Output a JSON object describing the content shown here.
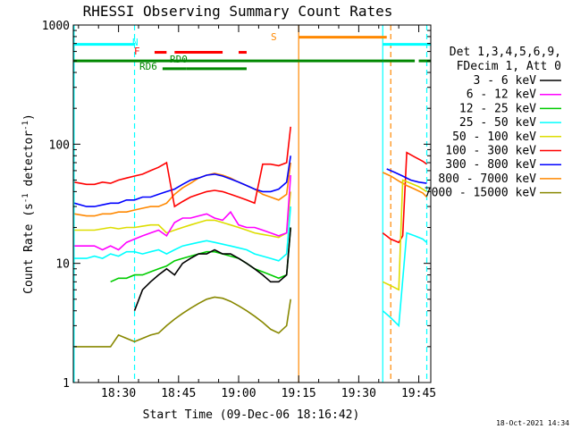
{
  "chart_data": {
    "type": "line",
    "title": "RHESSI Observing Summary Count Rates",
    "xlabel": "Start Time (09-Dec-06 18:16:42)",
    "ylabel_parts": [
      "Count Rate (s",
      "-1",
      " detector",
      "-1",
      ")"
    ],
    "yscale": "log",
    "ylim": [
      1,
      1000
    ],
    "xlim_minutes": [
      18.7,
      108.0
    ],
    "x_ticks": [
      {
        "label": "18:30",
        "m": 30
      },
      {
        "label": "18:45",
        "m": 45
      },
      {
        "label": "19:00",
        "m": 60
      },
      {
        "label": "19:15",
        "m": 75
      },
      {
        "label": "19:30",
        "m": 90
      },
      {
        "label": "19:45",
        "m": 105
      }
    ],
    "y_ticks": [
      {
        "label": "1",
        "v": 1
      },
      {
        "label": "10",
        "v": 10
      },
      {
        "label": "100",
        "v": 100
      },
      {
        "label": "1000",
        "v": 1000
      }
    ],
    "legend": {
      "header": [
        "Det 1,3,4,5,6,9,",
        "FDecim 1, Att 0"
      ],
      "placement": "right"
    },
    "series": [
      {
        "name": "3 - 6 keV",
        "color": "#000000",
        "points": [
          [
            34,
            4
          ],
          [
            36,
            6
          ],
          [
            38,
            7
          ],
          [
            40,
            8
          ],
          [
            42,
            9
          ],
          [
            44,
            8
          ],
          [
            46,
            10
          ],
          [
            48,
            11
          ],
          [
            50,
            12
          ],
          [
            52,
            12
          ],
          [
            54,
            13
          ],
          [
            56,
            12
          ],
          [
            58,
            12
          ],
          [
            60,
            11
          ],
          [
            62,
            10
          ],
          [
            64,
            9
          ],
          [
            66,
            8
          ],
          [
            68,
            7
          ],
          [
            70,
            7
          ],
          [
            72,
            8
          ],
          [
            73,
            20
          ]
        ]
      },
      {
        "name": "6 - 12 keV",
        "color": "#ff00ff",
        "points": [
          [
            19,
            14
          ],
          [
            24,
            14
          ],
          [
            26,
            13
          ],
          [
            28,
            14
          ],
          [
            30,
            13
          ],
          [
            32,
            15
          ],
          [
            34,
            16
          ],
          [
            36,
            17
          ],
          [
            38,
            18
          ],
          [
            40,
            19
          ],
          [
            42,
            17
          ],
          [
            44,
            22
          ],
          [
            46,
            24
          ],
          [
            48,
            24
          ],
          [
            50,
            25
          ],
          [
            52,
            26
          ],
          [
            54,
            24
          ],
          [
            56,
            23
          ],
          [
            58,
            27
          ],
          [
            60,
            21
          ],
          [
            62,
            20
          ],
          [
            64,
            20
          ],
          [
            66,
            19
          ],
          [
            68,
            18
          ],
          [
            70,
            17
          ],
          [
            72,
            18
          ],
          [
            73,
            55
          ]
        ]
      },
      {
        "name": "12 - 25 keV",
        "color": "#00cc00",
        "points": [
          [
            28,
            7
          ],
          [
            30,
            7.5
          ],
          [
            32,
            7.5
          ],
          [
            34,
            8
          ],
          [
            36,
            8
          ],
          [
            38,
            8.5
          ],
          [
            40,
            9
          ],
          [
            42,
            9.5
          ],
          [
            44,
            10.5
          ],
          [
            46,
            11
          ],
          [
            48,
            11.5
          ],
          [
            50,
            12
          ],
          [
            52,
            12.5
          ],
          [
            54,
            12.5
          ],
          [
            56,
            12
          ],
          [
            58,
            11.5
          ],
          [
            60,
            11
          ],
          [
            62,
            10
          ],
          [
            64,
            9
          ],
          [
            66,
            8.5
          ],
          [
            68,
            8
          ],
          [
            70,
            7.5
          ],
          [
            72,
            8
          ],
          [
            73,
            20
          ]
        ]
      },
      {
        "name": "25 - 50 keV",
        "color": "#00ffff",
        "points": [
          [
            19,
            11
          ],
          [
            22,
            11
          ],
          [
            24,
            11.5
          ],
          [
            26,
            11
          ],
          [
            28,
            12
          ],
          [
            30,
            11.5
          ],
          [
            32,
            12.5
          ],
          [
            34,
            12.5
          ],
          [
            36,
            12
          ],
          [
            38,
            12.5
          ],
          [
            40,
            13
          ],
          [
            42,
            12
          ],
          [
            44,
            13
          ],
          [
            46,
            14
          ],
          [
            48,
            14.5
          ],
          [
            50,
            15
          ],
          [
            52,
            15.5
          ],
          [
            54,
            15
          ],
          [
            56,
            14.5
          ],
          [
            58,
            14
          ],
          [
            60,
            13.5
          ],
          [
            62,
            13
          ],
          [
            64,
            12
          ],
          [
            66,
            11.5
          ],
          [
            68,
            11
          ],
          [
            70,
            10.5
          ],
          [
            72,
            12
          ],
          [
            73,
            30
          ]
        ]
      },
      {
        "name": "50 - 100 keV",
        "color": "#dddd00",
        "points": [
          [
            19,
            19
          ],
          [
            22,
            19
          ],
          [
            24,
            19
          ],
          [
            26,
            19.5
          ],
          [
            28,
            20
          ],
          [
            30,
            19.5
          ],
          [
            32,
            20
          ],
          [
            34,
            20
          ],
          [
            36,
            20.5
          ],
          [
            38,
            21
          ],
          [
            40,
            21
          ],
          [
            42,
            18
          ],
          [
            44,
            19
          ],
          [
            46,
            20
          ],
          [
            48,
            21
          ],
          [
            50,
            22
          ],
          [
            52,
            23
          ],
          [
            54,
            23
          ],
          [
            56,
            22
          ],
          [
            58,
            21
          ],
          [
            60,
            20
          ],
          [
            62,
            19
          ],
          [
            64,
            18
          ],
          [
            66,
            17.5
          ],
          [
            68,
            17
          ],
          [
            70,
            16.5
          ],
          [
            72,
            18
          ],
          [
            73,
            40
          ]
        ]
      },
      {
        "name": "100 - 300 keV",
        "color": "#ff0000",
        "points": [
          [
            19,
            48
          ],
          [
            22,
            46
          ],
          [
            24,
            46
          ],
          [
            26,
            48
          ],
          [
            28,
            47
          ],
          [
            30,
            50
          ],
          [
            32,
            52
          ],
          [
            34,
            54
          ],
          [
            36,
            56
          ],
          [
            38,
            60
          ],
          [
            40,
            64
          ],
          [
            42,
            70
          ],
          [
            44,
            30
          ],
          [
            46,
            33
          ],
          [
            48,
            36
          ],
          [
            50,
            38
          ],
          [
            52,
            40
          ],
          [
            54,
            41
          ],
          [
            56,
            40
          ],
          [
            58,
            38
          ],
          [
            60,
            36
          ],
          [
            62,
            34
          ],
          [
            64,
            32
          ],
          [
            66,
            68
          ],
          [
            68,
            68
          ],
          [
            70,
            66
          ],
          [
            72,
            70
          ],
          [
            73,
            140
          ]
        ]
      },
      {
        "name": "300 - 800 keV",
        "color": "#0000ff",
        "points": [
          [
            19,
            32
          ],
          [
            22,
            30
          ],
          [
            24,
            30
          ],
          [
            26,
            31
          ],
          [
            28,
            32
          ],
          [
            30,
            32
          ],
          [
            32,
            34
          ],
          [
            34,
            34
          ],
          [
            36,
            36
          ],
          [
            38,
            36
          ],
          [
            40,
            38
          ],
          [
            42,
            40
          ],
          [
            44,
            42
          ],
          [
            46,
            46
          ],
          [
            48,
            50
          ],
          [
            50,
            52
          ],
          [
            52,
            55
          ],
          [
            54,
            56
          ],
          [
            56,
            54
          ],
          [
            58,
            51
          ],
          [
            60,
            48
          ],
          [
            62,
            45
          ],
          [
            64,
            42
          ],
          [
            66,
            40
          ],
          [
            68,
            40
          ],
          [
            70,
            42
          ],
          [
            72,
            48
          ],
          [
            73,
            80
          ]
        ]
      },
      {
        "name": "800 - 7000 keV",
        "color": "#ff8800",
        "points": [
          [
            19,
            26
          ],
          [
            22,
            25
          ],
          [
            24,
            25
          ],
          [
            26,
            26
          ],
          [
            28,
            26
          ],
          [
            30,
            27
          ],
          [
            32,
            27
          ],
          [
            34,
            28
          ],
          [
            36,
            29
          ],
          [
            38,
            30
          ],
          [
            40,
            30
          ],
          [
            42,
            32
          ],
          [
            44,
            38
          ],
          [
            46,
            43
          ],
          [
            48,
            47
          ],
          [
            50,
            52
          ],
          [
            52,
            55
          ],
          [
            54,
            57
          ],
          [
            56,
            55
          ],
          [
            58,
            52
          ],
          [
            60,
            48
          ],
          [
            62,
            45
          ],
          [
            64,
            42
          ],
          [
            66,
            38
          ],
          [
            68,
            36
          ],
          [
            70,
            34
          ],
          [
            72,
            38
          ],
          [
            73,
            70
          ]
        ]
      },
      {
        "name": "7000 - 15000 keV",
        "color": "#888800",
        "points": [
          [
            19,
            2
          ],
          [
            24,
            2
          ],
          [
            28,
            2
          ],
          [
            30,
            2.5
          ],
          [
            34,
            2.2
          ],
          [
            38,
            2.5
          ],
          [
            40,
            2.6
          ],
          [
            42,
            3
          ],
          [
            44,
            3.4
          ],
          [
            46,
            3.8
          ],
          [
            48,
            4.2
          ],
          [
            50,
            4.6
          ],
          [
            52,
            5
          ],
          [
            54,
            5.2
          ],
          [
            56,
            5.1
          ],
          [
            58,
            4.8
          ],
          [
            60,
            4.4
          ],
          [
            62,
            4
          ],
          [
            64,
            3.6
          ],
          [
            66,
            3.2
          ],
          [
            68,
            2.8
          ],
          [
            70,
            2.6
          ],
          [
            72,
            3
          ],
          [
            73,
            5
          ]
        ]
      }
    ],
    "post_gap_series": [
      {
        "name": "100 - 300 keV",
        "color": "#ff0000",
        "points": [
          [
            96,
            18
          ],
          [
            98,
            16
          ],
          [
            100,
            15
          ],
          [
            101,
            17
          ],
          [
            102,
            85
          ],
          [
            104,
            78
          ],
          [
            106,
            72
          ],
          [
            107,
            68
          ]
        ]
      },
      {
        "name": "300 - 800 keV",
        "color": "#0000ff",
        "points": [
          [
            97,
            62
          ],
          [
            99,
            58
          ],
          [
            101,
            54
          ],
          [
            103,
            50
          ],
          [
            105,
            48
          ],
          [
            107,
            47
          ]
        ]
      },
      {
        "name": "800 - 7000 keV",
        "color": "#ff8800",
        "points": [
          [
            96,
            58
          ],
          [
            98,
            54
          ],
          [
            100,
            49
          ],
          [
            102,
            45
          ],
          [
            104,
            42
          ],
          [
            106,
            39
          ],
          [
            107,
            36
          ]
        ]
      },
      {
        "name": "50 - 100 keV",
        "color": "#dddd00",
        "points": [
          [
            96,
            7
          ],
          [
            98,
            6.5
          ],
          [
            100,
            6
          ],
          [
            101,
            50
          ],
          [
            103,
            47
          ],
          [
            105,
            44
          ],
          [
            107,
            40
          ]
        ]
      },
      {
        "name": "25 - 50 keV",
        "color": "#00ffff",
        "points": [
          [
            96,
            4
          ],
          [
            98,
            3.5
          ],
          [
            100,
            3
          ],
          [
            102,
            18
          ],
          [
            104,
            17
          ],
          [
            106,
            16
          ],
          [
            107,
            15
          ]
        ]
      }
    ],
    "flags": [
      {
        "label": "N",
        "color": "#00ffff",
        "level": 688,
        "segments": [
          [
            18.7,
            34
          ],
          [
            96,
            108
          ]
        ]
      },
      {
        "label": "S",
        "color": "#ff8800",
        "level": 790,
        "segments": [
          [
            75,
            97
          ]
        ]
      },
      {
        "label": "F",
        "color": "#ff0000",
        "level": 590,
        "segments": [
          [
            39,
            42
          ],
          [
            44,
            56
          ],
          [
            60,
            62
          ]
        ]
      },
      {
        "label": "RD0",
        "color": "#008800",
        "level": 500,
        "segments": [
          [
            18.7,
            75
          ],
          [
            75,
            96
          ],
          [
            96,
            104
          ],
          [
            105,
            108
          ]
        ]
      },
      {
        "label": "RD6",
        "color": "#008800",
        "level": 430,
        "segments": [
          [
            41,
            47
          ],
          [
            47,
            62
          ]
        ]
      }
    ],
    "vlines": [
      {
        "m": 18.9,
        "color": "#00ffff",
        "dash": false
      },
      {
        "m": 34,
        "color": "#00ffff",
        "dash": true
      },
      {
        "m": 75,
        "color": "#ff8800",
        "dash": false
      },
      {
        "m": 96,
        "color": "#00ffff",
        "dash": false
      },
      {
        "m": 98,
        "color": "#ff8800",
        "dash": true
      },
      {
        "m": 107,
        "color": "#00ffff",
        "dash": true
      }
    ],
    "flag_labels": {
      "N": "N",
      "S": "S",
      "F": "F",
      "RD0": "RD0",
      "RD6": "RD6"
    }
  },
  "footer": {
    "timestamp": "18-Oct-2021 14:34"
  }
}
